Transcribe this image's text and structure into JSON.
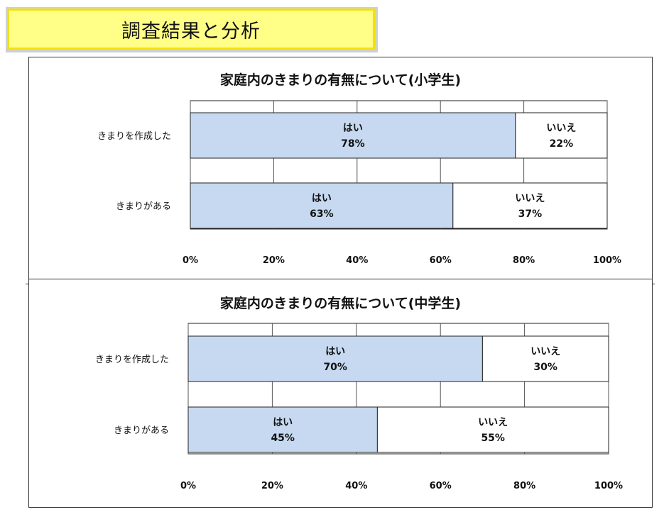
{
  "header": {
    "title": "調査結果と分析"
  },
  "colors": {
    "yes_fill": "#c6d9f1",
    "no_fill": "#ffffff",
    "border": "#222222",
    "grid": "#555555"
  },
  "chart_data": [
    {
      "type": "bar",
      "orientation": "horizontal",
      "stacked": "percent",
      "title": "家庭内のきまりの有無について(小学生)",
      "categories": [
        "きまりを作成した",
        "きまりがある"
      ],
      "series": [
        {
          "name": "はい",
          "values": [
            78,
            63
          ]
        },
        {
          "name": "いいえ",
          "values": [
            22,
            37
          ]
        }
      ],
      "value_labels": [
        [
          "78%",
          "63%"
        ],
        [
          "22%",
          "37%"
        ]
      ],
      "xlim": [
        0,
        100
      ],
      "xticks": [
        "0%",
        "20%",
        "40%",
        "60%",
        "80%",
        "100%"
      ],
      "grid": true
    },
    {
      "type": "bar",
      "orientation": "horizontal",
      "stacked": "percent",
      "title": "家庭内のきまりの有無について(中学生)",
      "categories": [
        "きまりを作成した",
        "きまりがある"
      ],
      "series": [
        {
          "name": "はい",
          "values": [
            70,
            45
          ]
        },
        {
          "name": "いいえ",
          "values": [
            30,
            55
          ]
        }
      ],
      "value_labels": [
        [
          "70%",
          "45%"
        ],
        [
          "30%",
          "55%"
        ]
      ],
      "xlim": [
        0,
        100
      ],
      "xticks": [
        "0%",
        "20%",
        "40%",
        "60%",
        "80%",
        "100%"
      ],
      "grid": true
    }
  ]
}
